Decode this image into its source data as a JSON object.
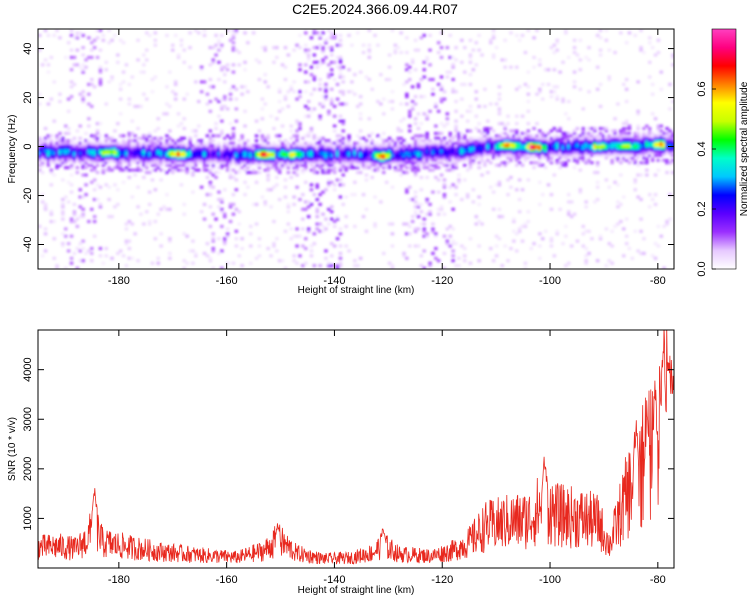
{
  "figure_title": "C2E5.2024.366.09.44.R07",
  "chart_data": [
    {
      "type": "heatmap",
      "xlabel": "Height of straight line (km)",
      "ylabel": "Frequency (Hz)",
      "xlim": [
        -195,
        -77
      ],
      "ylim": [
        -50,
        48
      ],
      "x_ticks": [
        -180,
        -160,
        -140,
        -120,
        -100,
        -80
      ],
      "y_ticks": [
        -40,
        -20,
        0,
        20,
        40
      ],
      "colorbar": {
        "label": "Normalized spectral amplitude",
        "range": [
          0.0,
          0.8
        ],
        "ticks": [
          0.0,
          0.2,
          0.4,
          0.6
        ],
        "colormap": [
          "#ffffff",
          "#e6c8ff",
          "#9b30ff",
          "#5a00ff",
          "#0000ff",
          "#00c8ff",
          "#00ffc8",
          "#00ff00",
          "#c8ff00",
          "#ffff00",
          "#ff8000",
          "#ff0000",
          "#ff0080",
          "#ff40c0"
        ]
      },
      "band": {
        "center_freq": [
          [
            -195,
            -2
          ],
          [
            -160,
            -3
          ],
          [
            -130,
            -3
          ],
          [
            -118,
            -2
          ],
          [
            -112,
            0
          ],
          [
            -100,
            0
          ],
          [
            -80,
            1
          ]
        ],
        "half_width_hz": 3.5,
        "hot_spots": [
          {
            "x": -182,
            "f": -2,
            "amplitude": 0.55
          },
          {
            "x": -169,
            "f": -3,
            "amplitude": 0.7
          },
          {
            "x": -153,
            "f": -3,
            "amplitude": 0.72
          },
          {
            "x": -148,
            "f": -3,
            "amplitude": 0.55
          },
          {
            "x": -131,
            "f": -4,
            "amplitude": 0.6
          },
          {
            "x": -108,
            "f": 1,
            "amplitude": 0.75
          },
          {
            "x": -103,
            "f": 0,
            "amplitude": 0.78
          },
          {
            "x": -91,
            "f": 0,
            "amplitude": 0.6
          },
          {
            "x": -86,
            "f": 0,
            "amplitude": 0.55
          },
          {
            "x": -80,
            "f": 1,
            "amplitude": 0.6
          }
        ]
      },
      "vertical_streaks": [
        {
          "x_range": [
            -190,
            -183
          ],
          "intensity": 0.12
        },
        {
          "x_range": [
            -165,
            -158
          ],
          "intensity": 0.15
        },
        {
          "x_range": [
            -147,
            -138
          ],
          "intensity": 0.2
        },
        {
          "x_range": [
            -127,
            -118
          ],
          "intensity": 0.17
        }
      ]
    },
    {
      "type": "line",
      "xlabel": "Height of straight line (km)",
      "ylabel": "SNR (10 * v/v)",
      "xlim": [
        -195,
        -77
      ],
      "ylim": [
        0,
        4800
      ],
      "x_ticks": [
        -180,
        -160,
        -140,
        -120,
        -100,
        -80
      ],
      "y_ticks": [
        1000,
        2000,
        3000,
        4000
      ],
      "series": [
        {
          "color": "#e8281e",
          "envelope": [
            {
              "x": -195,
              "y": 450
            },
            {
              "x": -191,
              "y": 470
            },
            {
              "x": -188,
              "y": 420
            },
            {
              "x": -186,
              "y": 600
            },
            {
              "x": -184.5,
              "y": 950
            },
            {
              "x": -183,
              "y": 550
            },
            {
              "x": -178,
              "y": 450
            },
            {
              "x": -172,
              "y": 350
            },
            {
              "x": -165,
              "y": 280
            },
            {
              "x": -158,
              "y": 230
            },
            {
              "x": -153,
              "y": 380
            },
            {
              "x": -150.5,
              "y": 620
            },
            {
              "x": -147,
              "y": 320
            },
            {
              "x": -142,
              "y": 200
            },
            {
              "x": -137,
              "y": 220
            },
            {
              "x": -133,
              "y": 330
            },
            {
              "x": -131,
              "y": 500
            },
            {
              "x": -128,
              "y": 300
            },
            {
              "x": -122,
              "y": 260
            },
            {
              "x": -118,
              "y": 380
            },
            {
              "x": -115,
              "y": 560
            },
            {
              "x": -112,
              "y": 900
            },
            {
              "x": -108,
              "y": 1000
            },
            {
              "x": -104,
              "y": 1050
            },
            {
              "x": -101,
              "y": 1400
            },
            {
              "x": -99,
              "y": 1150
            },
            {
              "x": -95,
              "y": 1100
            },
            {
              "x": -91,
              "y": 1000
            },
            {
              "x": -89,
              "y": 500
            },
            {
              "x": -86,
              "y": 1500
            },
            {
              "x": -84,
              "y": 2000
            },
            {
              "x": -81,
              "y": 2700
            },
            {
              "x": -79,
              "y": 3500
            },
            {
              "x": -77,
              "y": 3000
            }
          ],
          "peaks": [
            {
              "x": -184.5,
              "y": 1680
            },
            {
              "x": -150.5,
              "y": 950
            },
            {
              "x": -131,
              "y": 850
            },
            {
              "x": -101,
              "y": 2420
            },
            {
              "x": -84,
              "y": 2950
            },
            {
              "x": -82,
              "y": 3200
            },
            {
              "x": -80.5,
              "y": 3950
            },
            {
              "x": -79,
              "y": 4800
            },
            {
              "x": -78,
              "y": 4600
            },
            {
              "x": -77.5,
              "y": 4230
            }
          ]
        }
      ]
    }
  ]
}
